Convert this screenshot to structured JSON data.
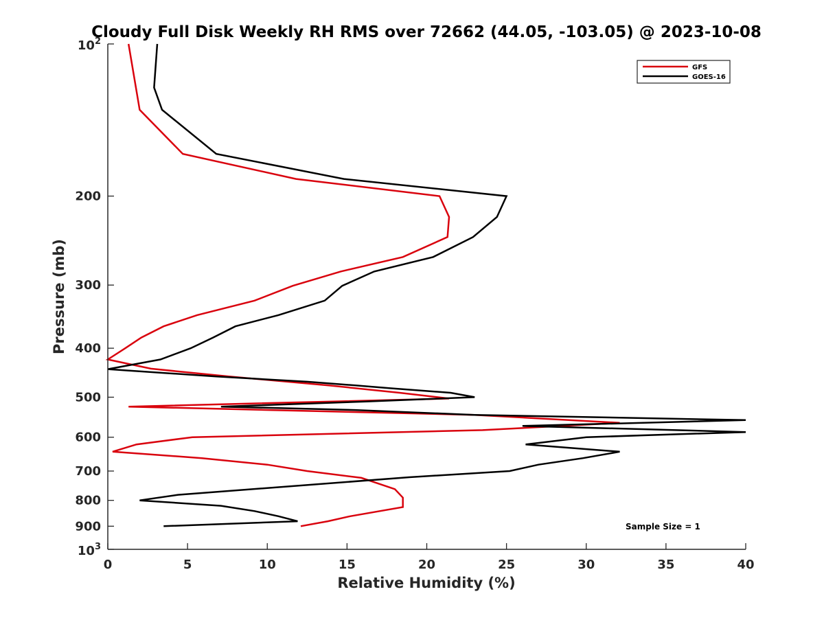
{
  "chart_data": {
    "type": "line",
    "title": "Cloudy Full Disk Weekly RH RMS over 72662 (44.05, -103.05) @ 2023-10-08",
    "xlabel": "Relative Humidity (%)",
    "ylabel": "Pressure (mb)",
    "xlim": [
      0,
      40
    ],
    "ylim": [
      100,
      1000
    ],
    "yscale": "log",
    "y_reversed": true,
    "grid": false,
    "legend_position": "top-right",
    "x_ticks": [
      0,
      5,
      10,
      15,
      20,
      25,
      30,
      35,
      40
    ],
    "x_tick_labels": [
      "0",
      "5",
      "10",
      "15",
      "20",
      "25",
      "30",
      "35",
      "40"
    ],
    "y_ticks": [
      200,
      300,
      400,
      500,
      600,
      700,
      800,
      900
    ],
    "y_tick_labels": [
      "200",
      "300",
      "400",
      "500",
      "600",
      "700",
      "800",
      "900"
    ],
    "y_decade_ticks": [
      100,
      1000
    ],
    "y_decade_labels": [
      {
        "base": "10",
        "exp": "2"
      },
      {
        "base": "10",
        "exp": "3"
      }
    ],
    "annotation": "Sample Size = 1",
    "series": [
      {
        "name": "GFS",
        "color": "#d9020d",
        "points": [
          [
            1.3,
            100
          ],
          [
            2.0,
            135
          ],
          [
            4.7,
            165
          ],
          [
            11.8,
            185
          ],
          [
            20.8,
            200
          ],
          [
            21.4,
            220
          ],
          [
            21.3,
            241
          ],
          [
            18.5,
            264
          ],
          [
            14.6,
            282
          ],
          [
            11.6,
            301
          ],
          [
            9.2,
            322
          ],
          [
            5.6,
            344
          ],
          [
            3.5,
            362
          ],
          [
            2.1,
            381
          ],
          [
            1.1,
            400
          ],
          [
            0.0,
            421
          ],
          [
            2.7,
            439
          ],
          [
            7.6,
            455
          ],
          [
            13.9,
            474
          ],
          [
            18.3,
            490
          ],
          [
            21.4,
            503
          ],
          [
            1.3,
            522
          ],
          [
            23.0,
            542
          ],
          [
            32.1,
            562
          ],
          [
            23.5,
            581
          ],
          [
            5.3,
            600
          ],
          [
            1.8,
            620
          ],
          [
            0.3,
            641
          ],
          [
            5.9,
            660
          ],
          [
            10.0,
            680
          ],
          [
            12.5,
            700
          ],
          [
            15.9,
            722
          ],
          [
            18.0,
            760
          ],
          [
            18.5,
            790
          ],
          [
            18.5,
            825
          ],
          [
            15.2,
            860
          ],
          [
            13.8,
            880
          ],
          [
            12.1,
            900
          ]
        ]
      },
      {
        "name": "GOES-16",
        "color": "#000000",
        "points": [
          [
            3.1,
            100
          ],
          [
            2.9,
            122
          ],
          [
            3.4,
            135
          ],
          [
            6.8,
            165
          ],
          [
            14.8,
            185
          ],
          [
            25.0,
            200
          ],
          [
            24.4,
            220
          ],
          [
            22.9,
            241
          ],
          [
            20.4,
            264
          ],
          [
            16.7,
            282
          ],
          [
            14.7,
            301
          ],
          [
            13.6,
            322
          ],
          [
            10.7,
            344
          ],
          [
            8.0,
            362
          ],
          [
            6.6,
            381
          ],
          [
            5.2,
            400
          ],
          [
            3.3,
            421
          ],
          [
            0.0,
            440
          ],
          [
            6.8,
            455
          ],
          [
            12.5,
            466
          ],
          [
            15.6,
            474
          ],
          [
            17.7,
            480
          ],
          [
            21.5,
            490
          ],
          [
            23.0,
            500
          ],
          [
            16.2,
            510
          ],
          [
            7.1,
            522
          ],
          [
            15.5,
            530
          ],
          [
            23.0,
            542
          ],
          [
            40.0,
            555
          ],
          [
            26.0,
            570
          ],
          [
            40.0,
            586
          ],
          [
            30.0,
            600
          ],
          [
            26.2,
            620
          ],
          [
            32.1,
            641
          ],
          [
            29.8,
            660
          ],
          [
            27.0,
            680
          ],
          [
            25.2,
            700
          ],
          [
            18.9,
            720
          ],
          [
            4.4,
            780
          ],
          [
            2.0,
            800
          ],
          [
            7.1,
            820
          ],
          [
            9.2,
            840
          ],
          [
            10.7,
            860
          ],
          [
            11.9,
            880
          ],
          [
            3.5,
            900
          ]
        ]
      }
    ]
  }
}
